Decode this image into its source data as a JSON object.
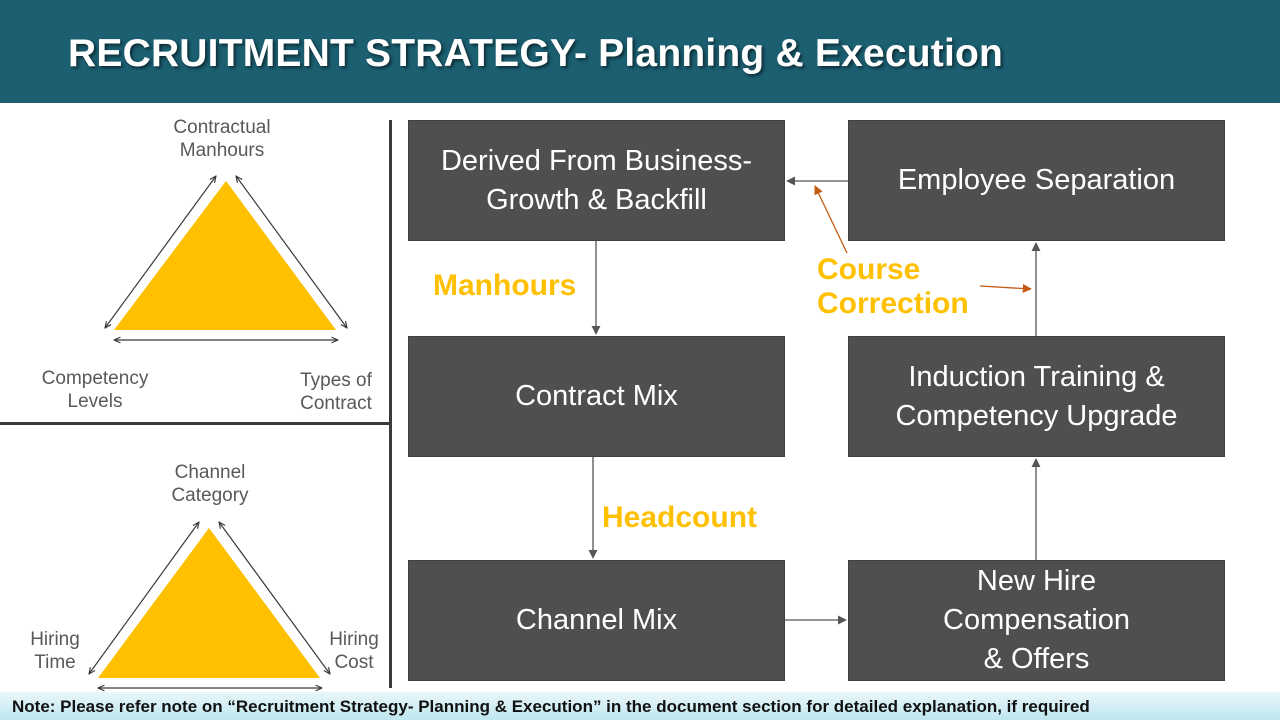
{
  "header": {
    "title": "RECRUITMENT STRATEGY- Planning & Execution"
  },
  "triangles": [
    {
      "top_label": "Contractual\nManhours",
      "left_label": "Competency\nLevels",
      "right_label": "Types of\nContract",
      "color": "#ffc000"
    },
    {
      "top_label": "Channel\nCategory",
      "left_label": "Hiring\nTime",
      "right_label": "Hiring\nCost",
      "color": "#ffc000"
    }
  ],
  "flow": {
    "boxes": {
      "derived": "Derived From Business-\nGrowth & Backfill",
      "separation": "Employee Separation",
      "contract_mix": "Contract Mix",
      "induction": "Induction Training &\nCompetency Upgrade",
      "channel_mix": "Channel Mix",
      "new_hire": "New Hire\nCompensation\n& Offers"
    },
    "labels": {
      "manhours": "Manhours",
      "headcount": "Headcount",
      "course_correction": "Course\nCorrection"
    },
    "colors": {
      "box": "#4f4f4f",
      "label": "#ffc000",
      "correction_arrow": "#c55a11"
    }
  },
  "footer": {
    "note": "Note: Please refer note on “Recruitment Strategy- Planning & Execution” in the document section for detailed explanation, if required"
  }
}
